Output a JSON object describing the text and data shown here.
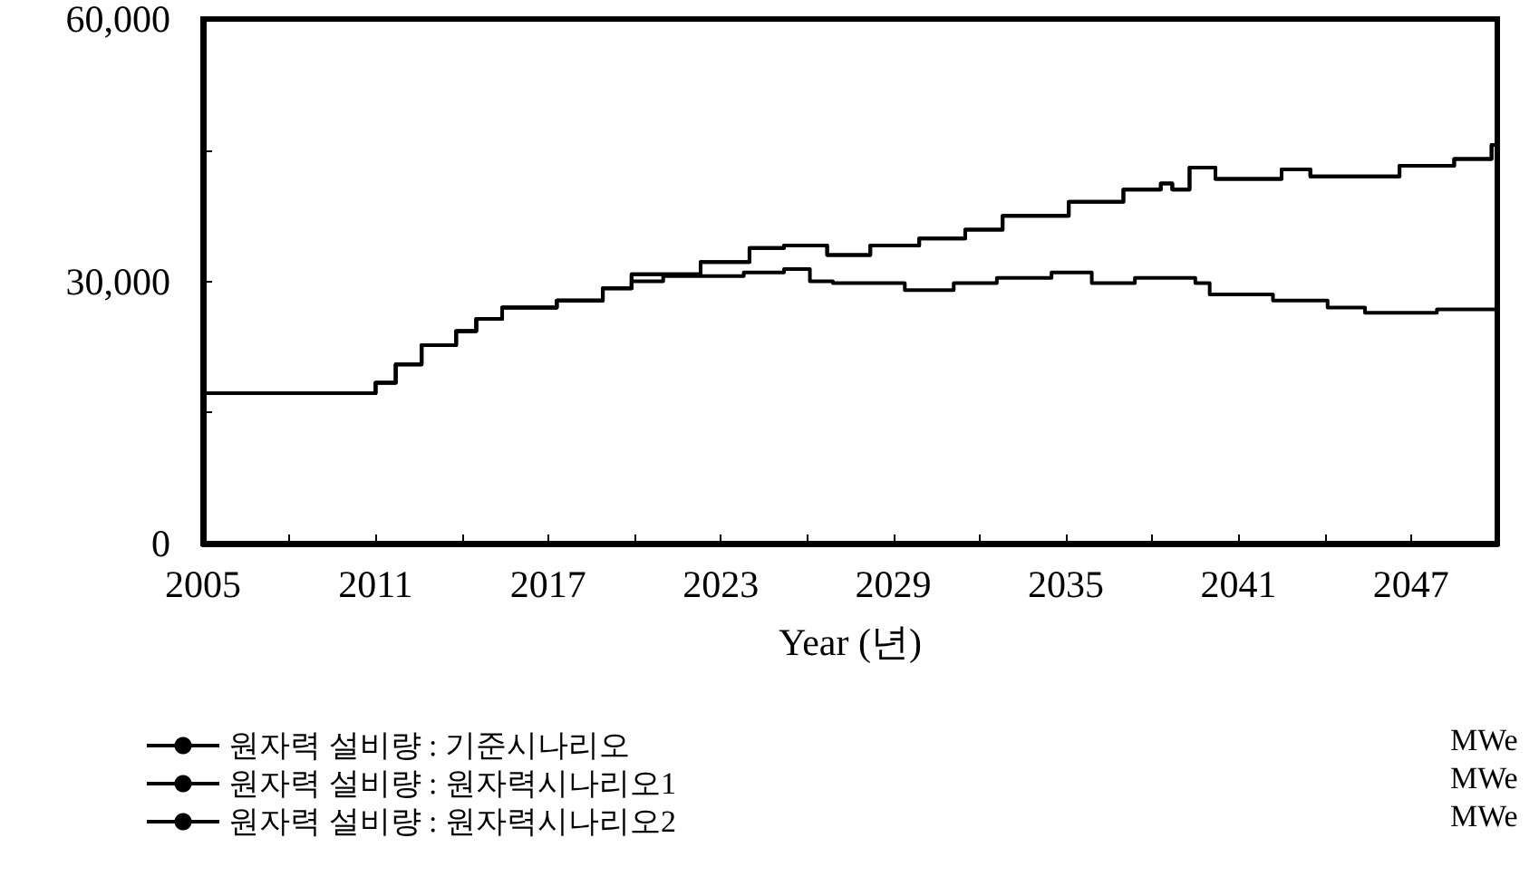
{
  "chart_data": {
    "type": "step",
    "xlabel": "Year (년)",
    "annotations": [
      "MWe",
      "MWe",
      "MWe"
    ],
    "xlim": [
      2005,
      2050
    ],
    "xticks": [
      2005,
      {
        "value": 2008,
        "label": null
      },
      2011,
      {
        "value": 2014,
        "label": null
      },
      2017,
      {
        "value": 2020,
        "label": null
      },
      2023,
      {
        "value": 2026,
        "label": null
      },
      2029,
      {
        "value": 2032,
        "label": null
      },
      2035,
      {
        "value": 2038,
        "label": null
      },
      2041,
      {
        "value": 2044,
        "label": null
      },
      2047,
      {
        "value": 2050,
        "label": null
      }
    ],
    "ylim": [
      0,
      60000
    ],
    "yticks": [
      {
        "value": 0,
        "label": "0"
      },
      {
        "value": 15000,
        "label": null
      },
      {
        "value": 30000,
        "label": "30,000"
      },
      {
        "value": 45000,
        "label": null
      },
      {
        "value": 60000,
        "label": "60,000"
      }
    ],
    "grid": false,
    "legend": "bottom",
    "series": [
      {
        "name": "원자력 설비량 : 기준시나리오",
        "color": "#000000",
        "x": [
          2005,
          2011,
          2011.7,
          2012.6,
          2013.8,
          2014.5,
          2015.4,
          2017.3,
          2018.9,
          2019.9,
          2022.3,
          2024,
          2025.2,
          2026.7,
          2028.2,
          2029.9,
          2031.5,
          2032.8,
          2035.1,
          2037,
          2038.3,
          2038.7,
          2039.3,
          2040.2,
          2042.5,
          2043.5,
          2046.6,
          2048.5,
          2049.8,
          2050
        ],
        "values": [
          17200,
          18400,
          20500,
          22700,
          24300,
          25700,
          27000,
          27800,
          29200,
          30800,
          32200,
          33800,
          34100,
          33000,
          34100,
          34900,
          35900,
          37500,
          39100,
          40500,
          41200,
          40500,
          43000,
          41700,
          42800,
          42000,
          43200,
          44000,
          45600,
          46400
        ]
      },
      {
        "name": "원자력 설비량 : 원자력시나리오1",
        "color": "#000000",
        "x": [
          2005,
          2011,
          2011.7,
          2012.6,
          2013.8,
          2014.5,
          2015.4,
          2017.3,
          2018.9,
          2019.9,
          2022.3,
          2024,
          2025.2,
          2026.7,
          2028.2,
          2029.9,
          2031.5,
          2032.8,
          2035.1,
          2037,
          2038.3,
          2038.7,
          2039.3,
          2040.2,
          2042.5,
          2043.5,
          2046.6,
          2048.5,
          2049.8,
          2050
        ],
        "values": [
          17200,
          18400,
          20500,
          22700,
          24300,
          25700,
          27000,
          27800,
          29200,
          30800,
          32200,
          33800,
          34100,
          33000,
          34100,
          34900,
          35900,
          37500,
          39100,
          40500,
          41200,
          40500,
          43000,
          41700,
          42800,
          42000,
          43200,
          44000,
          45600,
          46400
        ]
      },
      {
        "name": "원자력 설비량 : 원자력시나리오2",
        "color": "#000000",
        "x": [
          2005,
          2011,
          2011.7,
          2012.6,
          2013.8,
          2014.5,
          2015.4,
          2017.3,
          2018.9,
          2019.9,
          2021,
          2023.8,
          2025.2,
          2026.1,
          2026.9,
          2029.4,
          2031.1,
          2032.6,
          2034.5,
          2035.9,
          2037.4,
          2039.5,
          2040,
          2042.2,
          2044.1,
          2045.4,
          2047.9,
          2050
        ],
        "values": [
          17200,
          18400,
          20500,
          22700,
          24300,
          25700,
          27000,
          27800,
          29200,
          30000,
          30600,
          31000,
          31400,
          30000,
          29800,
          29000,
          29800,
          30400,
          31000,
          29800,
          30400,
          29800,
          28500,
          27800,
          27000,
          26400,
          26800,
          27400
        ]
      }
    ]
  }
}
